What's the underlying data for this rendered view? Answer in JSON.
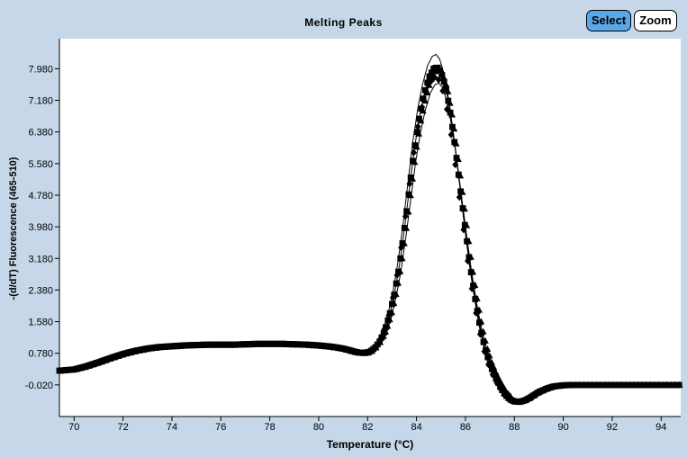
{
  "toolbar": {
    "select_label": "Select",
    "zoom_label": "Zoom"
  },
  "colors": {
    "background": "#c5d7e8",
    "plot_area": "#ffffff",
    "marker": "#000000",
    "select_active": "#5aa7e8"
  },
  "chart_data": {
    "type": "scatter",
    "title": "Melting Peaks",
    "xlabel": "Temperature (°C)",
    "ylabel": "-(d/dT) Fluorescence (465-510)",
    "xlim": [
      69.4,
      94.8
    ],
    "ylim": [
      -0.82,
      8.74
    ],
    "x_ticks": [
      70,
      72,
      74,
      76,
      78,
      80,
      82,
      84,
      86,
      88,
      90,
      92,
      94
    ],
    "y_ticks": [
      7.98,
      7.18,
      6.38,
      5.58,
      4.78,
      3.98,
      3.18,
      2.38,
      1.58,
      0.78,
      -0.02
    ],
    "y_tick_labels": [
      "7.980",
      "7.180",
      "6.380",
      "5.580",
      "4.780",
      "3.980",
      "3.180",
      "2.380",
      "1.580",
      "0.780",
      "-0.020"
    ],
    "grid": false,
    "marker_style": "filled squares, triangles and diamonds (overlapping replicates)",
    "series": [
      {
        "x": [
          69.4,
          70.0,
          70.5,
          71.0,
          71.5,
          72.0,
          72.5,
          73.0,
          73.5,
          74.0,
          74.5,
          75.0,
          75.5,
          76.0,
          76.5,
          77.0,
          77.5,
          78.0,
          78.5,
          79.0,
          79.5,
          80.0,
          80.5,
          81.0,
          81.3,
          81.6,
          81.9,
          82.1,
          82.3,
          82.5,
          82.7,
          82.9,
          83.1,
          83.3,
          83.5,
          83.7,
          83.9,
          84.1,
          84.3,
          84.5,
          84.7,
          84.85,
          85.0,
          85.2,
          85.4,
          85.6,
          85.8,
          86.0,
          86.2,
          86.4,
          86.6,
          86.8,
          87.0,
          87.2,
          87.4,
          87.6,
          87.8,
          88.0,
          88.2,
          88.4,
          88.6,
          88.8,
          89.0,
          89.3,
          89.6,
          90.0,
          90.5,
          91.0,
          92.0,
          93.0,
          94.0,
          94.8
        ],
        "y": [
          0.34,
          0.37,
          0.45,
          0.55,
          0.66,
          0.76,
          0.84,
          0.9,
          0.94,
          0.96,
          0.98,
          0.99,
          1.0,
          1.0,
          1.0,
          1.01,
          1.02,
          1.02,
          1.02,
          1.01,
          1.0,
          0.98,
          0.95,
          0.9,
          0.85,
          0.8,
          0.79,
          0.82,
          0.92,
          1.08,
          1.35,
          1.75,
          2.3,
          3.0,
          3.9,
          4.9,
          5.9,
          6.7,
          7.3,
          7.75,
          7.98,
          8.02,
          7.9,
          7.5,
          6.8,
          5.9,
          4.9,
          3.9,
          2.95,
          2.15,
          1.45,
          0.9,
          0.5,
          0.2,
          -0.04,
          -0.25,
          -0.38,
          -0.44,
          -0.45,
          -0.42,
          -0.36,
          -0.28,
          -0.2,
          -0.12,
          -0.06,
          -0.03,
          -0.02,
          -0.02,
          -0.02,
          -0.02,
          -0.02,
          -0.02
        ]
      }
    ]
  }
}
